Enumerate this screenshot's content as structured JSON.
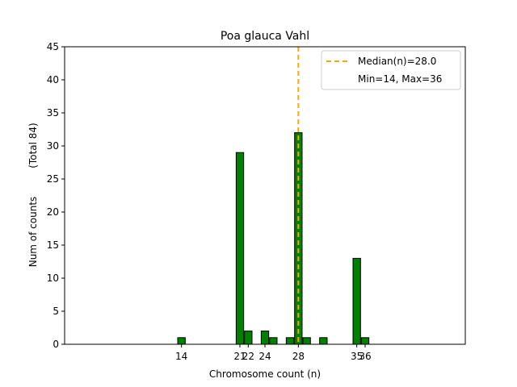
{
  "chart_data": {
    "type": "bar",
    "title": "Poa glauca Vahl",
    "xlabel": "Chromosome count (n)",
    "ylabel": "Num of counts",
    "ylabel_note": "(Total 84)",
    "xlim": [
      0,
      48
    ],
    "ylim": [
      0,
      45
    ],
    "yticks": [
      0,
      5,
      10,
      15,
      20,
      25,
      30,
      35,
      40,
      45
    ],
    "xticks": [
      14,
      21,
      22,
      24,
      28,
      35,
      36
    ],
    "bar_width": 0.9,
    "bar_color": "#008000",
    "bar_edge_color": "#000000",
    "bars": [
      {
        "x": 14,
        "value": 1
      },
      {
        "x": 21,
        "value": 29
      },
      {
        "x": 22,
        "value": 2
      },
      {
        "x": 24,
        "value": 2
      },
      {
        "x": 25,
        "value": 1
      },
      {
        "x": 27,
        "value": 1
      },
      {
        "x": 28,
        "value": 32
      },
      {
        "x": 29,
        "value": 1
      },
      {
        "x": 31,
        "value": 1
      },
      {
        "x": 35,
        "value": 13
      },
      {
        "x": 36,
        "value": 1
      }
    ],
    "median_line": {
      "x": 28.0,
      "color": "#FFA500",
      "style": "dashed"
    },
    "legend": {
      "placement": "top-right",
      "entries": [
        "Median(n)=28.0",
        "Min=14, Max=36"
      ]
    }
  }
}
